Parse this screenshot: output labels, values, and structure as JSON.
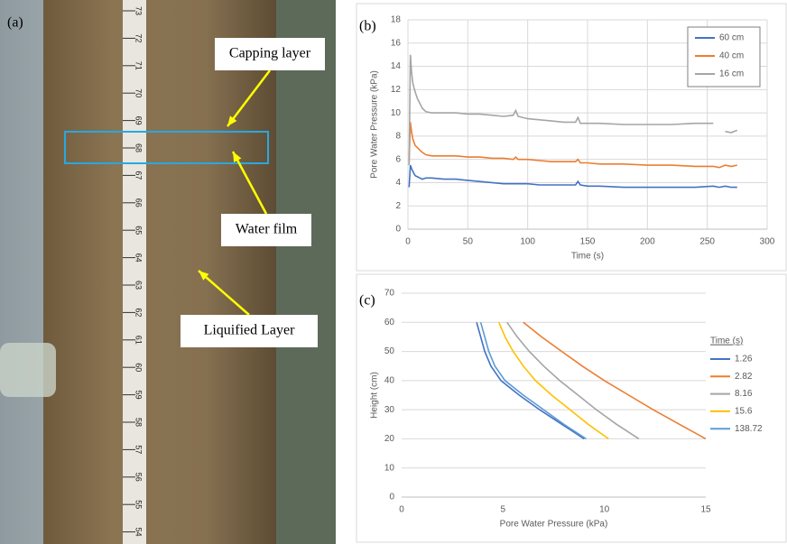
{
  "photo": {
    "label": "(a)",
    "callouts": [
      "Capping layer",
      "Water film",
      "Liquified Layer"
    ],
    "ruler": [
      "73",
      "72",
      "71",
      "70",
      "69",
      "68",
      "67",
      "66",
      "65",
      "64",
      "63",
      "62",
      "61",
      "60",
      "59",
      "58",
      "57",
      "56",
      "55",
      "54"
    ]
  },
  "chart_data": [
    {
      "type": "line",
      "panel_label": "(b)",
      "xlabel": "Time (s)",
      "ylabel": "Pore Water Pressure (kPa)",
      "xlim": [
        0,
        300
      ],
      "xticks": [
        0,
        50,
        100,
        150,
        200,
        250,
        300
      ],
      "ylim": [
        0,
        18
      ],
      "yticks": [
        0,
        2,
        4,
        6,
        8,
        10,
        12,
        14,
        16,
        18
      ],
      "grid": "both",
      "legend": "top-right",
      "x": [
        1,
        2,
        3,
        4,
        5,
        6,
        8,
        10,
        12,
        15,
        20,
        30,
        40,
        50,
        60,
        70,
        80,
        88,
        90,
        92,
        100,
        110,
        120,
        130,
        140,
        142,
        144,
        150,
        160,
        180,
        200,
        220,
        240,
        255,
        260,
        265,
        270,
        275
      ],
      "series": [
        {
          "name": "60 cm",
          "color": "#4472c4",
          "values": [
            3.6,
            5.5,
            5.2,
            5.0,
            4.8,
            4.6,
            4.5,
            4.4,
            4.3,
            4.4,
            4.4,
            4.3,
            4.3,
            4.2,
            4.1,
            4.0,
            3.9,
            3.9,
            3.9,
            3.9,
            3.9,
            3.8,
            3.8,
            3.8,
            3.8,
            4.1,
            3.8,
            3.7,
            3.7,
            3.6,
            3.6,
            3.6,
            3.6,
            3.7,
            3.6,
            3.7,
            3.6,
            3.6
          ]
        },
        {
          "name": "40 cm",
          "color": "#ed7d31",
          "values": [
            5.8,
            9.2,
            8.4,
            7.8,
            7.5,
            7.2,
            7.0,
            6.8,
            6.6,
            6.4,
            6.3,
            6.3,
            6.3,
            6.2,
            6.2,
            6.1,
            6.1,
            6.0,
            6.2,
            6.0,
            6.0,
            5.9,
            5.8,
            5.8,
            5.8,
            6.0,
            5.7,
            5.7,
            5.6,
            5.6,
            5.5,
            5.5,
            5.4,
            5.4,
            5.3,
            5.5,
            5.4,
            5.5
          ]
        },
        {
          "name": "16 cm",
          "color": "#a5a5a5",
          "values": [
            5.5,
            15.0,
            13.5,
            12.6,
            12.2,
            11.8,
            11.2,
            10.8,
            10.4,
            10.1,
            10.0,
            10.0,
            10.0,
            9.9,
            9.9,
            9.8,
            9.7,
            9.8,
            10.2,
            9.7,
            9.5,
            9.4,
            9.3,
            9.2,
            9.2,
            9.6,
            9.1,
            9.1,
            9.1,
            9.0,
            9.0,
            9.0,
            9.1,
            9.1,
            null,
            8.4,
            8.3,
            8.5
          ]
        }
      ]
    },
    {
      "type": "line",
      "panel_label": "(c)",
      "xlabel": "Pore Water Pressure (kPa)",
      "ylabel": "Height (cm)",
      "xlim": [
        0,
        15
      ],
      "xticks": [
        0,
        5,
        10,
        15
      ],
      "ylim": [
        0,
        70
      ],
      "yticks": [
        0,
        10,
        20,
        30,
        40,
        50,
        60,
        70
      ],
      "grid": "y",
      "legend": "right",
      "legend_title": "Time (s)",
      "series": [
        {
          "name": "1.26",
          "color": "#4472c4",
          "x": [
            3.7,
            3.9,
            4.1,
            4.4,
            4.9,
            5.8,
            6.8,
            7.9,
            9.0
          ],
          "values": [
            60,
            55,
            50,
            45,
            40,
            35,
            30,
            25,
            20
          ]
        },
        {
          "name": "2.82",
          "color": "#ed7d31",
          "x": [
            6.0,
            6.9,
            7.9,
            8.9,
            10.0,
            11.2,
            12.4,
            13.7,
            15.0
          ],
          "values": [
            60,
            55,
            50,
            45,
            40,
            35,
            30,
            25,
            20
          ]
        },
        {
          "name": "8.16",
          "color": "#a5a5a5",
          "x": [
            5.2,
            5.7,
            6.3,
            7.0,
            7.8,
            8.7,
            9.6,
            10.6,
            11.7
          ],
          "values": [
            60,
            55,
            50,
            45,
            40,
            35,
            30,
            25,
            20
          ]
        },
        {
          "name": "15.6",
          "color": "#ffc000",
          "x": [
            4.8,
            5.1,
            5.5,
            6.0,
            6.6,
            7.4,
            8.3,
            9.2,
            10.2
          ],
          "values": [
            60,
            55,
            50,
            45,
            40,
            35,
            30,
            25,
            20
          ]
        },
        {
          "name": "138.72",
          "color": "#5b9bd5",
          "x": [
            3.9,
            4.1,
            4.3,
            4.6,
            5.1,
            6.0,
            7.0,
            8.0,
            9.1
          ],
          "values": [
            60,
            55,
            50,
            45,
            40,
            35,
            30,
            25,
            20
          ]
        }
      ]
    }
  ]
}
